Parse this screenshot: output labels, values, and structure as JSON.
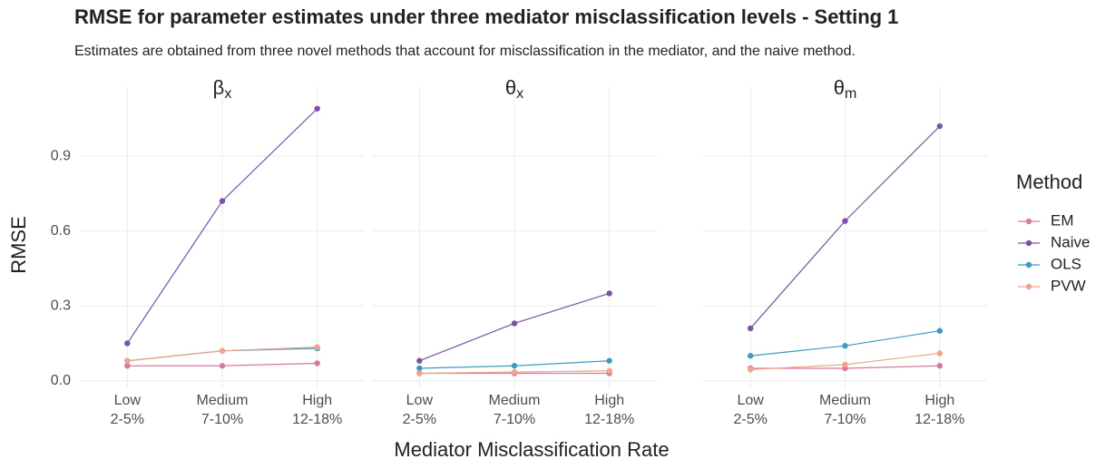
{
  "chart_data": {
    "type": "line",
    "title": "RMSE for parameter estimates under three mediator misclassification levels - Setting 1",
    "subtitle": "Estimates are obtained from three novel methods that account for misclassification in the mediator, and the naive method.",
    "x_label": "Mediator Misclassification Rate",
    "y_label": "RMSE",
    "legend_title": "Method",
    "categories": [
      [
        "Low",
        "2-5%"
      ],
      [
        "Medium",
        "7-10%"
      ],
      [
        "High",
        "12-18%"
      ]
    ],
    "ylim": [
      -0.03,
      1.18
    ],
    "yticks": [
      {
        "value": 0,
        "label": "0.0"
      },
      0.3,
      0.6,
      0.9
    ],
    "grid": true,
    "facets": [
      {
        "title": {
          "symbol": "β",
          "subscript": "x"
        },
        "series": [
          {
            "name": "EM",
            "color": "#d9799c",
            "values": [
              0.06,
              0.06,
              0.07
            ]
          },
          {
            "name": "Naive",
            "color": "#7a52a6",
            "values": [
              0.15,
              0.72,
              1.09
            ]
          },
          {
            "name": "OLS",
            "color": "#3b9cc0",
            "values": [
              0.08,
              0.12,
              0.13
            ]
          },
          {
            "name": "PVW",
            "color": "#f0a48e",
            "values": [
              0.08,
              0.12,
              0.135
            ]
          }
        ]
      },
      {
        "title": {
          "symbol": "θ",
          "subscript": "x"
        },
        "series": [
          {
            "name": "EM",
            "color": "#d9799c",
            "values": [
              0.03,
              0.03,
              0.03
            ]
          },
          {
            "name": "Naive",
            "color": "#7a52a6",
            "values": [
              0.08,
              0.23,
              0.35
            ]
          },
          {
            "name": "OLS",
            "color": "#3b9cc0",
            "values": [
              0.05,
              0.06,
              0.08
            ]
          },
          {
            "name": "PVW",
            "color": "#f0a48e",
            "values": [
              0.03,
              0.035,
              0.04
            ]
          }
        ]
      },
      {
        "title": {
          "symbol": "θ",
          "subscript": "m"
        },
        "series": [
          {
            "name": "EM",
            "color": "#d9799c",
            "values": [
              0.05,
              0.05,
              0.06
            ]
          },
          {
            "name": "Naive",
            "color": "#7a52a6",
            "values": [
              0.21,
              0.64,
              1.02
            ]
          },
          {
            "name": "OLS",
            "color": "#3b9cc0",
            "values": [
              0.1,
              0.14,
              0.2
            ]
          },
          {
            "name": "PVW",
            "color": "#f0a48e",
            "values": [
              0.045,
              0.065,
              0.11
            ]
          }
        ]
      }
    ]
  }
}
